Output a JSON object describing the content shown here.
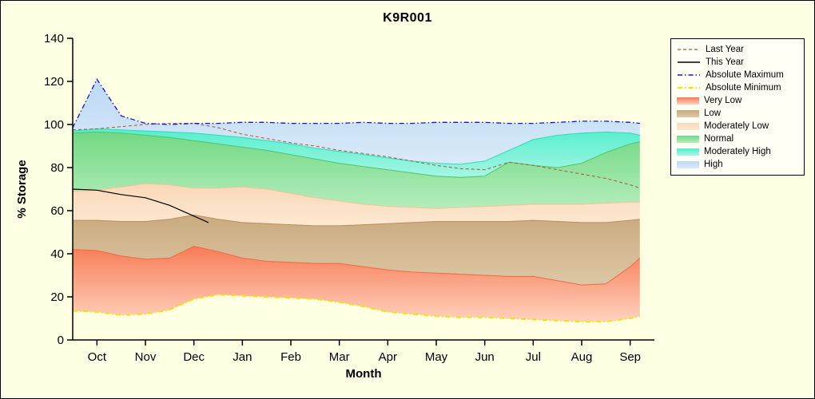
{
  "chart_data": {
    "type": "area",
    "title": "K9R001",
    "xlabel": "Month",
    "ylabel": "% Storage",
    "ylim": [
      0,
      140
    ],
    "y_tick_step": 20,
    "grid": false,
    "legend_position": "right",
    "x_labels": [
      "Oct",
      "Nov",
      "Dec",
      "Jan",
      "Feb",
      "Mar",
      "Apr",
      "May",
      "Jun",
      "Jul",
      "Aug",
      "Sep"
    ],
    "x_grid_months": [
      -0.5,
      0,
      0.5,
      1,
      1.5,
      2,
      2.5,
      3,
      3.5,
      4,
      4.5,
      5,
      5.5,
      6,
      6.5,
      7,
      7.5,
      8,
      8.5,
      9,
      9.5,
      10,
      10.5,
      11,
      11.2
    ],
    "bands": [
      {
        "label": "Very Low",
        "fill_top": "#F87B55",
        "fill_bottom": "#FFD2BE",
        "edge": "#EE6B42",
        "bottom_ref": "Absolute Minimum",
        "top": [
          42,
          41.5,
          39,
          37.5,
          38,
          43.5,
          41,
          38,
          36.5,
          36,
          35.5,
          35.5,
          34,
          32.5,
          31.5,
          31,
          30.5,
          30,
          29.5,
          29.5,
          27.5,
          25.5,
          26,
          34,
          38
        ]
      },
      {
        "label": "Low",
        "fill_top": "#CBAA7E",
        "fill_bottom": "#DCC8A6",
        "edge": "#B69060",
        "top": [
          55.5,
          55.5,
          55,
          55,
          56,
          58,
          56,
          54.5,
          54,
          53.5,
          53,
          53,
          53.5,
          54,
          54.5,
          55,
          55,
          55,
          55,
          55.5,
          55,
          54.5,
          54.5,
          55.5,
          56
        ]
      },
      {
        "label": "Moderately Low",
        "fill_top": "#F9D8B8",
        "fill_bottom": "#FCE8D0",
        "edge": "#EFC49A",
        "top": [
          69,
          69.5,
          71,
          72.5,
          72,
          70.5,
          70.5,
          71,
          70,
          68,
          66,
          64.5,
          63,
          62,
          61.5,
          61,
          61.5,
          62,
          62.5,
          63,
          63,
          63,
          63.5,
          64,
          64
        ]
      },
      {
        "label": "Normal",
        "fill_top": "#72D883",
        "fill_bottom": "#B4EDBC",
        "edge": "#4FC468",
        "top": [
          96,
          96.5,
          96,
          95,
          94,
          92.5,
          91,
          89.5,
          88,
          86,
          84,
          82,
          80.5,
          79,
          77.5,
          76,
          75.5,
          76,
          82.5,
          81,
          80,
          82,
          87,
          91,
          92
        ]
      },
      {
        "label": "Moderately High",
        "fill_top": "#55EECD",
        "fill_bottom": "#A5F6E3",
        "edge": "#2BDDB4",
        "top": [
          97,
          98,
          97.5,
          97,
          96.5,
          96,
          95,
          94,
          92.5,
          91,
          89,
          87.5,
          86,
          84.5,
          83,
          82,
          81.5,
          83,
          88,
          93,
          95,
          96,
          96.5,
          96,
          95
        ]
      },
      {
        "label": "High",
        "fill_top": "#BCD9F4",
        "fill_bottom": "#D9EAF9",
        "edge": null,
        "top_ref": "Absolute Maximum"
      }
    ],
    "lines": [
      {
        "label": "Last Year",
        "color": "#AA5533",
        "width": 1,
        "dash": "4 3",
        "values": [
          97.5,
          98,
          99,
          100,
          100.5,
          100.5,
          98.5,
          95.5,
          93.5,
          91.5,
          90,
          88,
          86.5,
          85,
          83,
          81,
          79.5,
          79,
          82.5,
          81,
          79,
          77,
          75,
          72,
          70.5
        ]
      },
      {
        "label": "This Year",
        "color": "#000000",
        "width": 1.2,
        "dash": null,
        "x": [
          -0.5,
          0,
          0.5,
          1,
          1.5,
          2,
          2.3
        ],
        "values": [
          70,
          69.5,
          67.5,
          66,
          62.5,
          57.5,
          54.5
        ]
      },
      {
        "label": "Absolute Maximum",
        "color": "#1212E8",
        "width": 1.3,
        "dash": "6 3 1.5 3",
        "values": [
          98.5,
          121,
          104,
          100.5,
          100,
          100.5,
          100.5,
          101,
          101,
          100.5,
          100.5,
          100.5,
          101,
          100.5,
          100.5,
          101,
          101,
          101,
          100.5,
          100.5,
          101,
          101.5,
          101.5,
          101,
          100.5
        ]
      },
      {
        "label": "Absolute Minimum",
        "color": "#F2E20A",
        "width": 2,
        "dash": "6 3 1.5 3",
        "values": [
          13.5,
          13,
          11.5,
          12,
          14,
          19,
          21,
          20.5,
          20,
          19.5,
          19,
          17.5,
          15.5,
          13,
          12,
          11,
          10.5,
          10.5,
          10,
          9.5,
          9,
          8.5,
          8.5,
          10,
          11
        ]
      }
    ],
    "legend_order": [
      "Last Year",
      "This Year",
      "Absolute Maximum",
      "Absolute Minimum",
      "Very Low",
      "Low",
      "Moderately Low",
      "Normal",
      "Moderately High",
      "High"
    ]
  },
  "colors": {
    "figure_bg": "#FFFFE4",
    "legend_bg": "#FFFFF6",
    "axis": "#000000"
  }
}
